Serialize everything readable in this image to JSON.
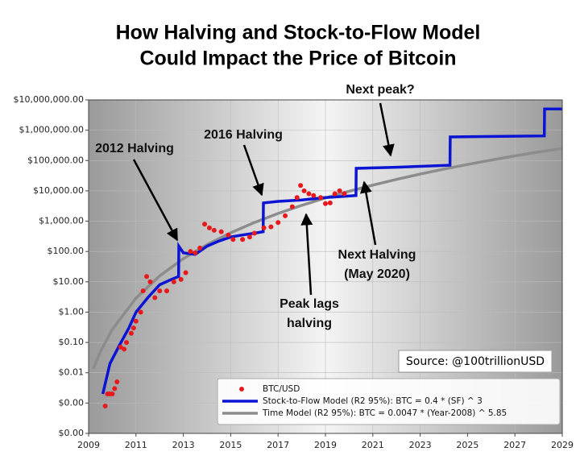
{
  "chart_data": {
    "type": "line",
    "title": [
      "How Halving and Stock-to-Flow Model",
      "Could Impact the Price of Bitcoin"
    ],
    "log_y": true,
    "grid": true,
    "xlim": [
      2009,
      2029
    ],
    "xticks": [
      2009,
      2011,
      2013,
      2015,
      2017,
      2019,
      2021,
      2023,
      2025,
      2027,
      2029
    ],
    "ylim": [
      0.0001,
      10000000
    ],
    "yticks": [
      {
        "value": 0.0001,
        "label": "$0.00"
      },
      {
        "value": 0.001,
        "label": "$0.00"
      },
      {
        "value": 0.01,
        "label": "$0.01"
      },
      {
        "value": 0.1,
        "label": "$0.10"
      },
      {
        "value": 1,
        "label": "$1.00"
      },
      {
        "value": 10,
        "label": "$10.00"
      },
      {
        "value": 100,
        "label": "$100.00"
      },
      {
        "value": 1000,
        "label": "$1,000.00"
      },
      {
        "value": 10000,
        "label": "$10,000.00"
      },
      {
        "value": 100000,
        "label": "$100,000.00"
      },
      {
        "value": 1000000,
        "label": "$1,000,000.00"
      },
      {
        "value": 10000000,
        "label": "$10,000,000.00"
      }
    ],
    "legend": "lower right",
    "series": [
      {
        "name": "BTC/USD",
        "type": "scatter",
        "color": "#e8191c",
        "x": [
          2009.7,
          2009.8,
          2009.9,
          2010.0,
          2010.1,
          2010.2,
          2010.35,
          2010.5,
          2010.6,
          2010.8,
          2010.9,
          2011.0,
          2011.2,
          2011.3,
          2011.45,
          2011.6,
          2011.8,
          2012.0,
          2012.3,
          2012.6,
          2012.9,
          2013.1,
          2013.3,
          2013.5,
          2013.7,
          2013.9,
          2014.1,
          2014.3,
          2014.6,
          2014.9,
          2015.1,
          2015.5,
          2015.8,
          2016.0,
          2016.4,
          2016.7,
          2017.0,
          2017.3,
          2017.6,
          2017.8,
          2017.95,
          2018.1,
          2018.3,
          2018.5,
          2018.8,
          2019.0,
          2019.2,
          2019.4,
          2019.6,
          2019.8
        ],
        "values": [
          0.0008,
          0.002,
          0.002,
          0.002,
          0.003,
          0.005,
          0.07,
          0.06,
          0.1,
          0.2,
          0.3,
          0.5,
          1,
          5,
          15,
          10,
          3,
          5,
          5,
          10,
          12,
          20,
          100,
          90,
          130,
          800,
          600,
          500,
          450,
          350,
          250,
          250,
          300,
          400,
          600,
          650,
          900,
          1500,
          3000,
          6000,
          15000,
          10000,
          8000,
          7000,
          6000,
          3800,
          4000,
          8000,
          10000,
          8000
        ]
      },
      {
        "name": "Stock-to-Flow Model (R2 95%): BTC = 0.4 * (SF) ^ 3",
        "type": "line",
        "color": "#0a14d2",
        "x": [
          2009.6,
          2009.9,
          2010.3,
          2010.7,
          2011.0,
          2011.5,
          2012.0,
          2012.5,
          2012.8,
          2012.81,
          2013.0,
          2013.5,
          2014.0,
          2014.5,
          2015.0,
          2015.5,
          2016.0,
          2016.37,
          2016.38,
          2017.0,
          2018.0,
          2019.0,
          2020.29,
          2020.3,
          2022.0,
          2024.26,
          2024.27,
          2026.0,
          2028.24,
          2028.25,
          2029.0
        ],
        "values": [
          0.002,
          0.02,
          0.08,
          0.3,
          1,
          3,
          8,
          12,
          15,
          150,
          90,
          80,
          150,
          220,
          300,
          350,
          400,
          450,
          4000,
          4500,
          5000,
          6000,
          7000,
          55000,
          60000,
          70000,
          600000,
          620000,
          650000,
          5000000,
          5000000
        ]
      },
      {
        "name": "Time Model (R2 95%): BTC = 0.0047 * (Year-2008) ^ 5.85",
        "type": "line",
        "color": "#8c8c8c",
        "x": [
          2009.2,
          2009.5,
          2010,
          2011,
          2012,
          2013,
          2014,
          2015,
          2016,
          2017,
          2018,
          2019,
          2020,
          2021,
          2022,
          2023,
          2024,
          2025,
          2026,
          2027,
          2028,
          2029
        ],
        "values": [
          0.0137,
          0.05,
          0.27,
          2.9,
          15.6,
          58,
          168,
          413,
          902,
          1796,
          3327,
          5830,
          9680,
          15460,
          23830,
          35700,
          52100,
          74200,
          103800,
          142000,
          191700,
          250000
        ]
      }
    ],
    "annotations": [
      {
        "lines": [
          "2012 Halving"
        ]
      },
      {
        "lines": [
          "2016 Halving"
        ]
      },
      {
        "lines": [
          "Next peak?"
        ]
      },
      {
        "lines": [
          "Next Halving",
          "(May 2020)"
        ]
      },
      {
        "lines": [
          "Peak lags",
          "halving"
        ]
      }
    ],
    "source": "Source: @100trillionUSD"
  }
}
